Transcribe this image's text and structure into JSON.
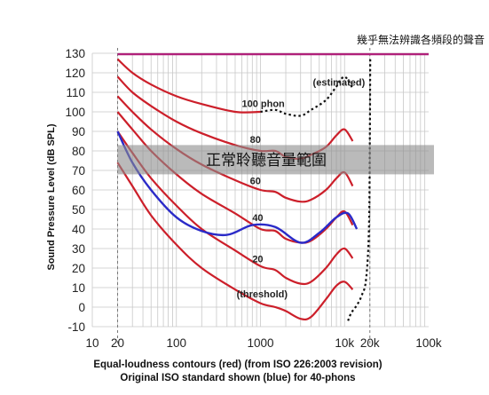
{
  "chart_data": {
    "type": "line",
    "title": "",
    "ylabel": "Sound Pressure Level (dB SPL)",
    "xscale": "log",
    "xlim": [
      10,
      100000
    ],
    "ylim": [
      -10,
      130
    ],
    "yticks": [
      130,
      120,
      110,
      100,
      90,
      80,
      70,
      60,
      50,
      40,
      30,
      20,
      10,
      0,
      -10
    ],
    "xticks": [
      {
        "value": 10,
        "label": "10"
      },
      {
        "value": 20,
        "label": "20"
      },
      {
        "value": 100,
        "label": "100"
      },
      {
        "value": 1000,
        "label": "1000"
      },
      {
        "value": 10000,
        "label": "10k"
      },
      {
        "value": 20000,
        "label": "20k"
      },
      {
        "value": 100000,
        "label": "100k"
      }
    ],
    "caption_line1": "Equal-loudness contours (red) (from ISO 226:2003 revision)",
    "caption_line2": "Original ISO standard shown (blue) for 40-phons",
    "top_annotation": "幾乎無法辨識各頻段的聲音",
    "band_annotation": "正常聆聽音量範圍",
    "labels": {
      "estimated": "(estimated)",
      "p100": "100 phon",
      "p80": "80",
      "p60": "60",
      "p40": "40",
      "p20": "20",
      "threshold": "(threshold)"
    },
    "colors": {
      "contours": "#cc1f2a",
      "iso_original": "#2a2ac8",
      "top_line": "#b0207a",
      "band": "#8c8c8c"
    },
    "top_line_level": 129.5,
    "band_range": [
      68,
      83
    ],
    "series": [
      {
        "x": [
          20,
          30,
          50,
          100,
          200,
          500,
          1000,
          1500,
          2000,
          3000,
          4000,
          6000,
          8000,
          10000,
          12500
        ],
        "y": [
          74,
          62,
          47,
          32,
          20,
          9,
          2,
          0,
          -2,
          -6,
          -5,
          4,
          11,
          13,
          9
        ]
      },
      {
        "x": [
          20,
          30,
          50,
          100,
          200,
          500,
          1000,
          1500,
          2000,
          3000,
          4000,
          6000,
          8000,
          10000,
          12500
        ],
        "y": [
          90,
          79,
          66,
          52,
          40,
          29,
          21,
          19,
          15,
          12,
          13,
          20,
          27,
          30,
          25
        ]
      },
      {
        "x": [
          20,
          30,
          50,
          100,
          200,
          500,
          1000,
          1500,
          2000,
          3000,
          4000,
          6000,
          8000,
          10000,
          12500
        ],
        "y": [
          100,
          91,
          80,
          68,
          58,
          48,
          40,
          39,
          35,
          33,
          34,
          40,
          46,
          49,
          42
        ]
      },
      {
        "x": [
          20,
          30,
          50,
          100,
          200,
          500,
          1000,
          1500,
          2000,
          3000,
          4000,
          6000,
          8000,
          10000,
          12500
        ],
        "y": [
          108,
          100,
          91,
          81,
          73,
          65,
          60,
          59,
          56,
          54,
          55,
          60,
          66,
          69,
          62
        ]
      },
      {
        "x": [
          20,
          30,
          50,
          100,
          200,
          500,
          1000,
          1500,
          2000,
          3000,
          4000,
          6000,
          8000,
          10000,
          12500
        ],
        "y": [
          118,
          110,
          103,
          95,
          89,
          83,
          80,
          80,
          77,
          76,
          78,
          82,
          88,
          91,
          85
        ]
      },
      {
        "x": [
          20,
          30,
          50,
          100,
          200,
          500,
          1000
        ],
        "y": [
          127,
          120,
          114,
          108,
          104,
          100,
          100
        ]
      },
      {
        "x": [
          1000,
          1500,
          2000,
          3000,
          4000,
          6000,
          8000,
          10000,
          12500
        ],
        "y": [
          100,
          101,
          99,
          98,
          101,
          106,
          113,
          118,
          112
        ]
      },
      {
        "x": [
          20,
          30,
          50,
          100,
          200,
          400,
          800,
          1500,
          3000,
          5000,
          8000,
          11000,
          14000
        ],
        "y": [
          90,
          74,
          60,
          46,
          39,
          37,
          42,
          41,
          33,
          38,
          46,
          48,
          40
        ]
      },
      {
        "x": [
          11000,
          12000,
          14000,
          16000,
          18000,
          19500,
          20000,
          20200
        ],
        "y": [
          -7,
          -3,
          1,
          6,
          14,
          40,
          90,
          128
        ]
      }
    ]
  }
}
